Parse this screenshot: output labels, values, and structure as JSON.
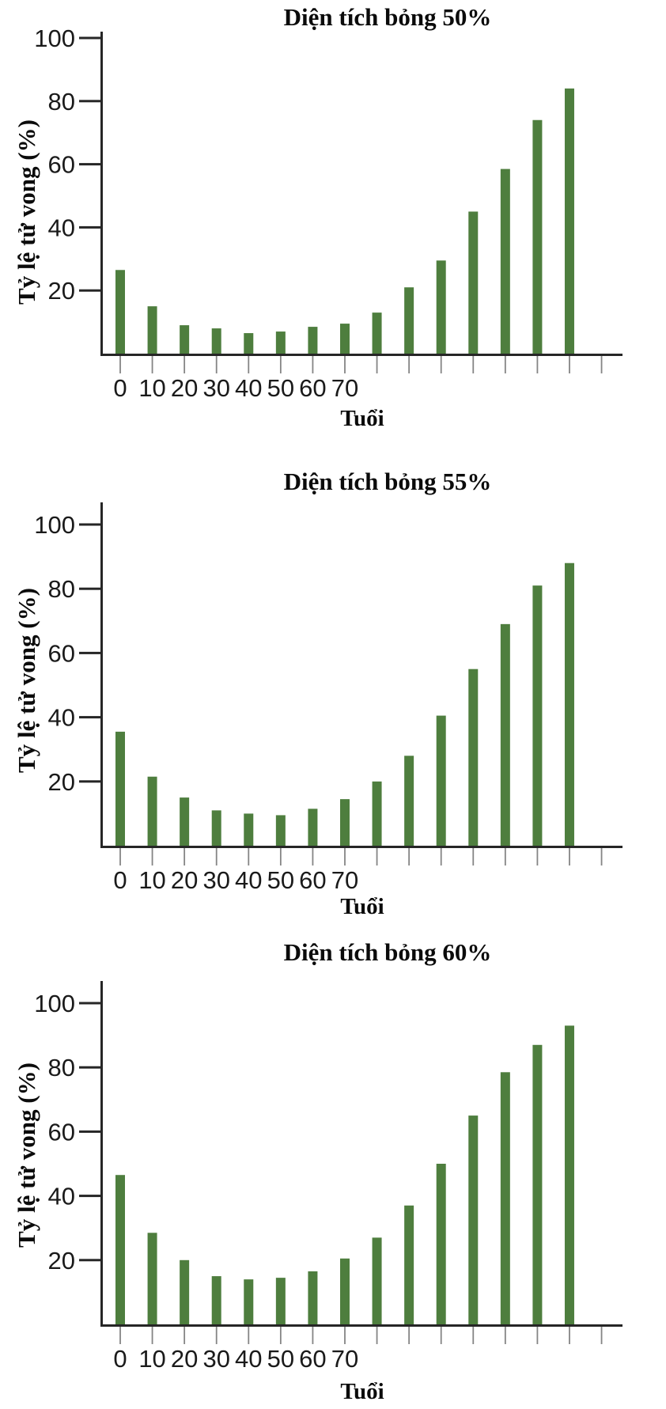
{
  "figure": {
    "bar_color": "#4e7e3e",
    "axis_color": "#262626",
    "x_tick_color": "#858585",
    "text_color": "#1a1a1a",
    "y_axis_label": "Tỷ lệ tử vong (%)",
    "x_axis_label": "Tuổi"
  },
  "chart_data": [
    {
      "type": "bar",
      "title": "Diện tích bỏng 50%",
      "xlabel": "Tuổi",
      "ylabel": "Tỷ lệ tử vong (%)",
      "y_ticks": [
        20,
        40,
        60,
        80,
        100
      ],
      "ylim": [
        0,
        107
      ],
      "grid": false,
      "x_tick_labels": [
        "0",
        "10",
        "20",
        "30",
        "40",
        "50",
        "60",
        "70",
        "",
        "",
        "",
        "",
        "",
        "",
        ""
      ],
      "values": [
        26.5,
        15,
        9,
        8,
        6.5,
        7,
        8.5,
        9.5,
        13,
        21,
        29.5,
        45,
        58.5,
        74,
        84
      ]
    },
    {
      "type": "bar",
      "title": "Diện tích bỏng 55%",
      "xlabel": "Tuổi",
      "ylabel": "Tỷ lệ tử vong (%)",
      "y_ticks": [
        20,
        40,
        60,
        80,
        100
      ],
      "ylim": [
        0,
        107
      ],
      "grid": false,
      "x_tick_labels": [
        "0",
        "10",
        "20",
        "30",
        "40",
        "50",
        "60",
        "70",
        "",
        "",
        "",
        "",
        "",
        "",
        ""
      ],
      "values": [
        35.5,
        21.5,
        15,
        11,
        10,
        9.5,
        11.5,
        14.5,
        20,
        28,
        40.5,
        55,
        69,
        81,
        88
      ]
    },
    {
      "type": "bar",
      "title": "Diện tích bỏng 60%",
      "xlabel": "Tuổi",
      "ylabel": "Tỷ lệ tử vong (%)",
      "y_ticks": [
        20,
        40,
        60,
        80,
        100
      ],
      "ylim": [
        0,
        107
      ],
      "grid": false,
      "x_tick_labels": [
        "0",
        "10",
        "20",
        "30",
        "40",
        "50",
        "60",
        "70",
        "",
        "",
        "",
        "",
        "",
        "",
        ""
      ],
      "values": [
        46.5,
        28.5,
        20,
        15,
        14,
        14.5,
        16.5,
        20.5,
        27,
        37,
        50,
        65,
        78.5,
        87,
        93
      ]
    }
  ]
}
